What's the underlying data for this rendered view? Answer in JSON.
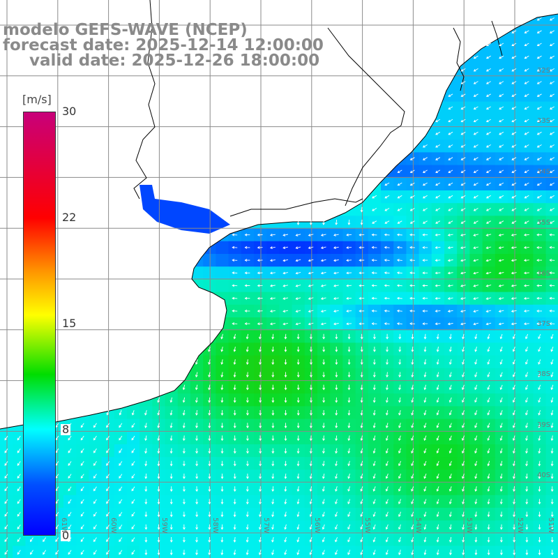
{
  "title": {
    "line1": "modelo GEFS-WAVE (NCEP)",
    "line2": "forecast date: 2025-12-14 12:00:00",
    "line3": "valid date: 2025-12-26 18:00:00"
  },
  "colorbar": {
    "unit": "[m/s]",
    "ticks": [
      "30",
      "22",
      "15",
      "8",
      "0"
    ],
    "colors": [
      "#c8007a",
      "#ff0000",
      "#ff9900",
      "#ffff00",
      "#00dd00",
      "#00ffff",
      "#0050ff",
      "#0000ff"
    ]
  },
  "lat_labels": [
    "32S",
    "33S",
    "34S",
    "35S",
    "36S",
    "37S",
    "38S",
    "39S",
    "40S"
  ],
  "lon_labels": [
    "61W",
    "60W",
    "59W",
    "58W",
    "57W",
    "56W",
    "55W",
    "54W",
    "53W",
    "52W",
    "51W"
  ],
  "field_colors": {
    "land": "#ffffff",
    "grid": "#8a8a8a",
    "coast": "#000000",
    "arrow": "#ffffff"
  }
}
